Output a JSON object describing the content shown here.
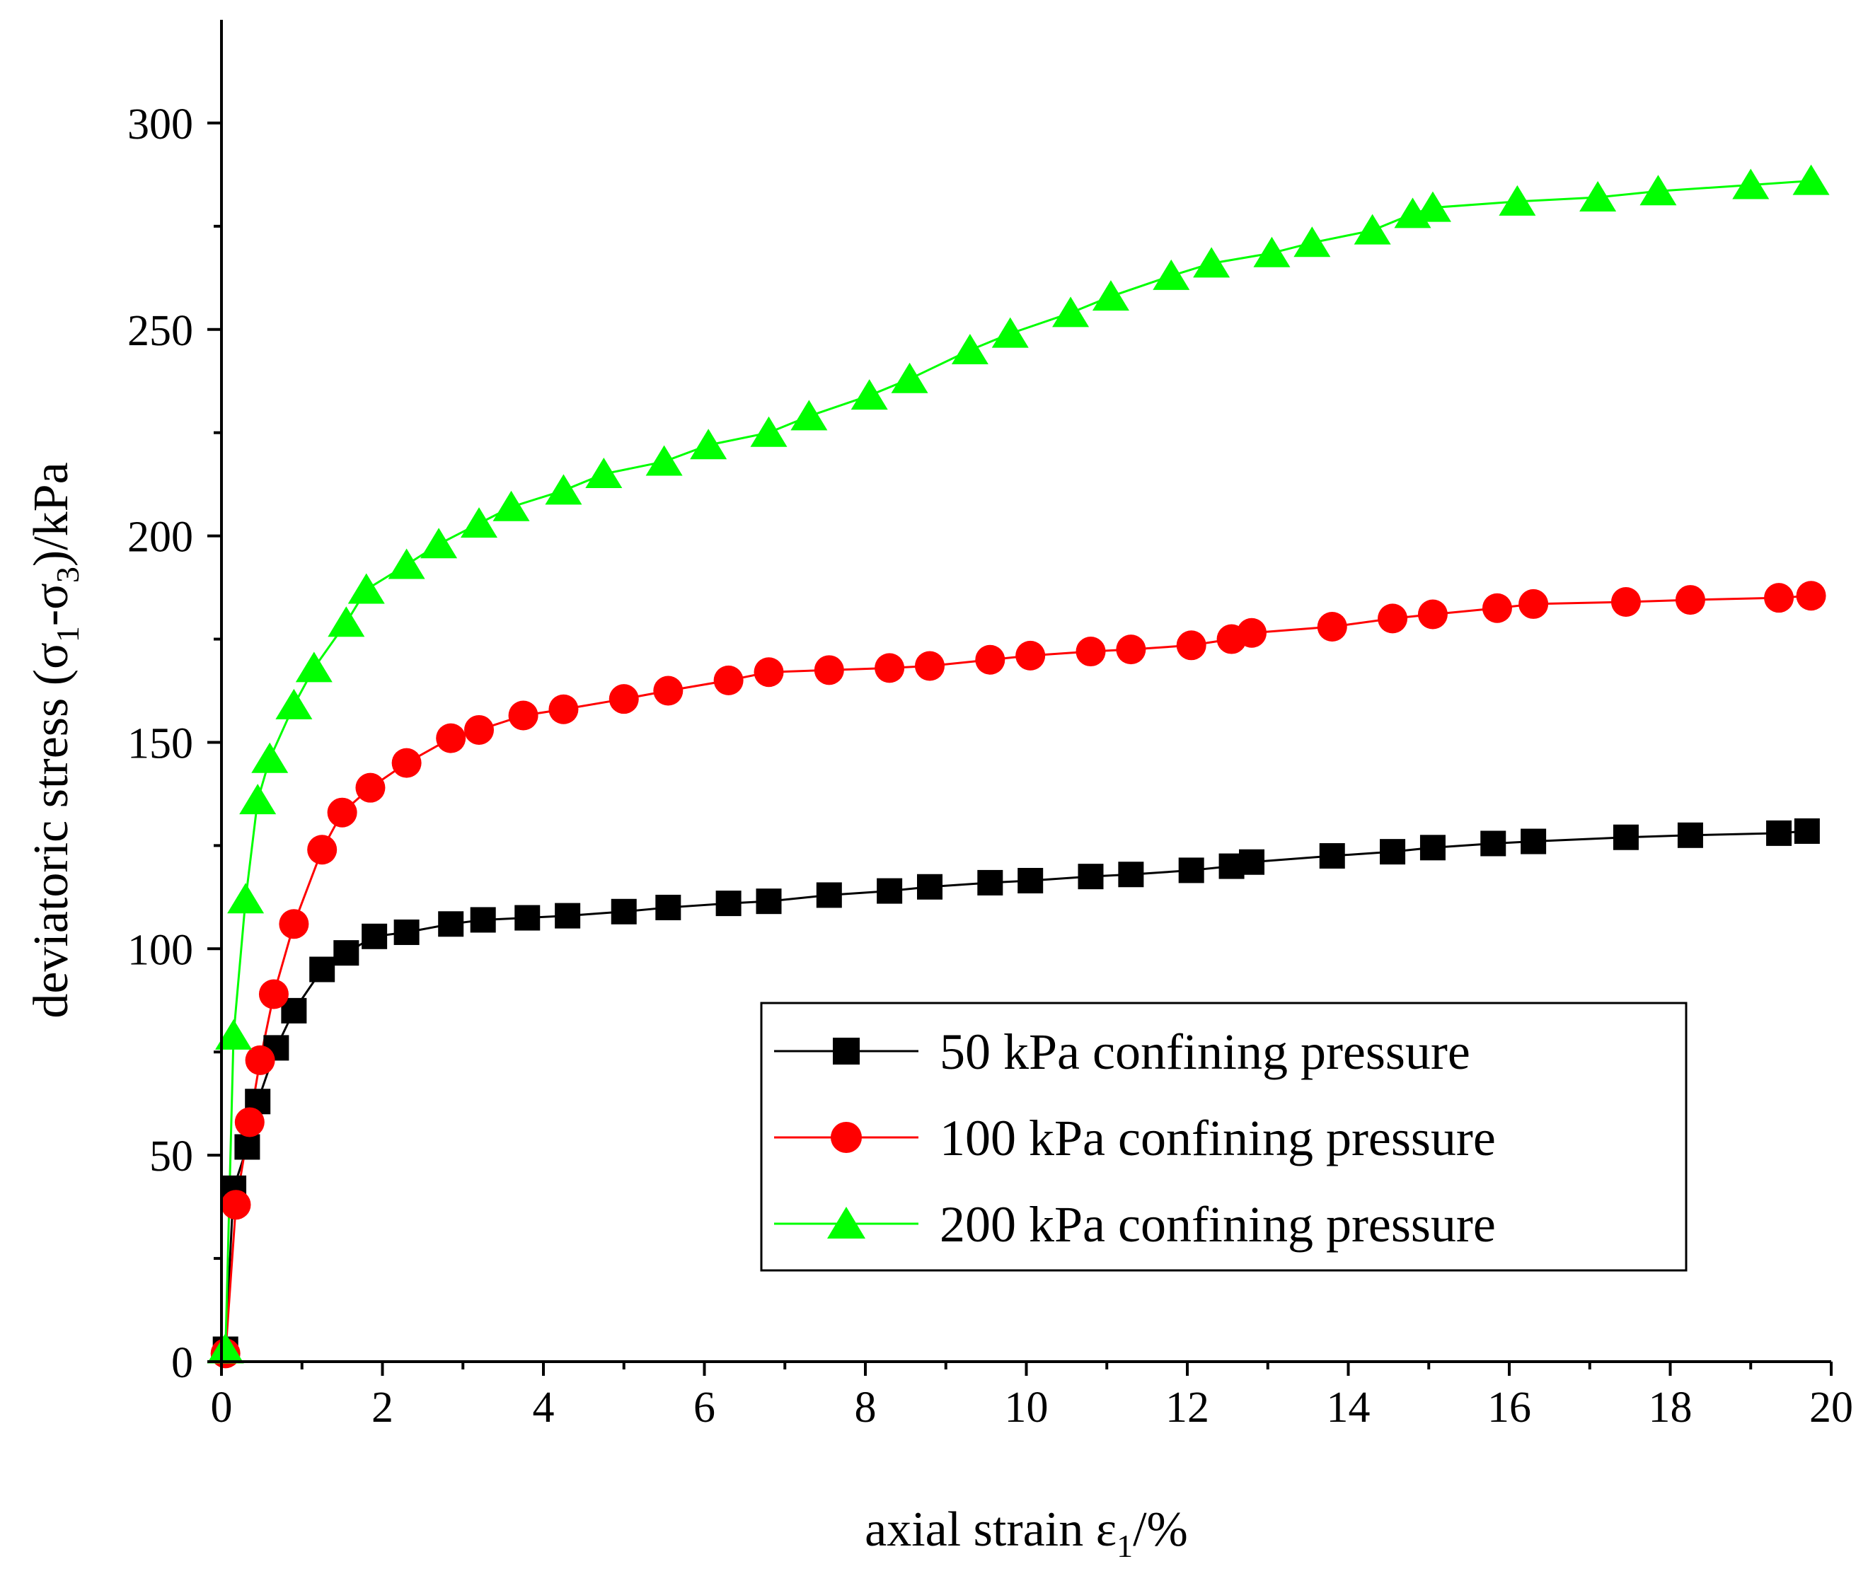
{
  "chart_data": {
    "type": "line",
    "title": "",
    "xlabel": "axial strain ε",
    "xlabel_sub": "1",
    "xlabel_suffix": "/%",
    "ylabel_parts": [
      "deviatoric stress (σ",
      "1",
      "-σ",
      "3",
      ")/kPa"
    ],
    "xlim": [
      0,
      20
    ],
    "ylim": [
      0,
      325
    ],
    "x_ticks": [
      0,
      2,
      4,
      6,
      8,
      10,
      12,
      14,
      16,
      18,
      20
    ],
    "x_tick_labels": [
      "0",
      "2",
      "4",
      "6",
      "8",
      "10",
      "12",
      "14",
      "16",
      "18",
      "20"
    ],
    "y_ticks": [
      0,
      50,
      100,
      150,
      200,
      250,
      300
    ],
    "y_tick_labels": [
      "0",
      "50",
      "100",
      "150",
      "200",
      "250",
      "300"
    ],
    "grid": false,
    "legend_position": "bottom-right",
    "series": [
      {
        "name": "50 kPa confining pressure",
        "color": "#000000",
        "marker": "square",
        "x": [
          0.05,
          0.15,
          0.32,
          0.45,
          0.68,
          0.9,
          1.25,
          1.55,
          1.9,
          2.3,
          2.85,
          3.25,
          3.8,
          4.3,
          5.0,
          5.55,
          6.3,
          6.8,
          7.55,
          8.3,
          8.8,
          9.55,
          10.05,
          10.8,
          11.3,
          12.05,
          12.55,
          12.8,
          13.8,
          14.55,
          15.05,
          15.8,
          16.3,
          17.45,
          18.25,
          19.35,
          19.7
        ],
        "y": [
          3,
          42,
          52,
          63,
          76,
          85,
          95,
          99,
          103,
          104,
          106,
          107,
          107.5,
          108,
          109,
          110,
          111,
          111.5,
          113,
          114,
          115,
          116,
          116.5,
          117.5,
          118,
          119,
          120,
          121,
          122.5,
          123.5,
          124.5,
          125.5,
          126,
          127,
          127.5,
          128,
          128.5
        ]
      },
      {
        "name": "100 kPa confining pressure",
        "color": "#ff0000",
        "marker": "circle",
        "x": [
          0.05,
          0.18,
          0.35,
          0.48,
          0.65,
          0.9,
          1.25,
          1.5,
          1.85,
          2.3,
          2.85,
          3.2,
          3.75,
          4.25,
          5.0,
          5.55,
          6.3,
          6.8,
          7.55,
          8.3,
          8.8,
          9.55,
          10.05,
          10.8,
          11.3,
          12.05,
          12.55,
          12.8,
          13.8,
          14.55,
          15.05,
          15.85,
          16.3,
          17.45,
          18.25,
          19.35,
          19.75
        ],
        "y": [
          2,
          38,
          58,
          73,
          89,
          106,
          124,
          133,
          139,
          145,
          151,
          153,
          156.5,
          158,
          160.5,
          162.5,
          165,
          167,
          167.5,
          168,
          168.5,
          170,
          171,
          172,
          172.5,
          173.5,
          175,
          176.5,
          178,
          180,
          181,
          182.5,
          183.5,
          184,
          184.5,
          185,
          185.5
        ]
      },
      {
        "name": "200 kPa confining pressure",
        "color": "#00ff00",
        "marker": "triangle",
        "x": [
          0.05,
          0.15,
          0.3,
          0.45,
          0.6,
          0.9,
          1.15,
          1.55,
          1.8,
          2.3,
          2.7,
          3.2,
          3.6,
          4.25,
          4.75,
          5.5,
          6.05,
          6.8,
          7.3,
          8.05,
          8.55,
          9.3,
          9.8,
          10.55,
          11.05,
          11.8,
          12.3,
          13.05,
          13.55,
          14.3,
          14.8,
          15.05,
          16.1,
          17.1,
          17.85,
          19.0,
          19.75
        ],
        "y": [
          3,
          79,
          112,
          136,
          146,
          159,
          168,
          179,
          187,
          193,
          198,
          203,
          207,
          211,
          215,
          218,
          222,
          225,
          229,
          234,
          238,
          245,
          249,
          254,
          258,
          263,
          266,
          268.5,
          271,
          274,
          278,
          279.5,
          281,
          282,
          283.5,
          285,
          286
        ]
      }
    ]
  }
}
